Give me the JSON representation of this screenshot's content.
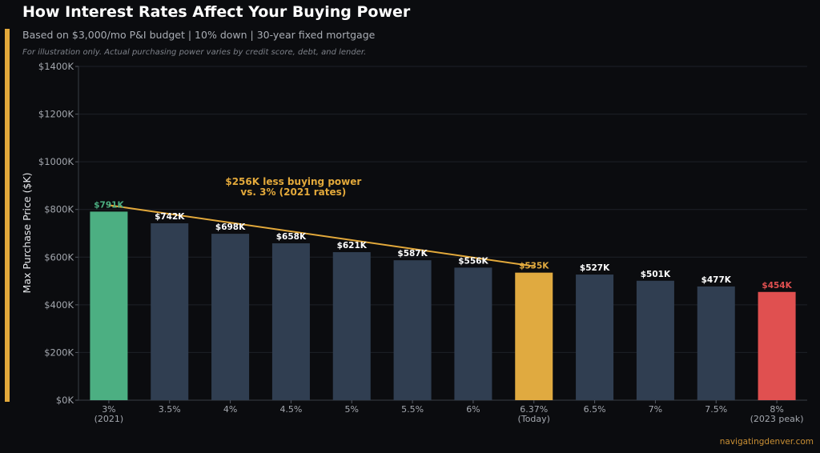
{
  "header": {
    "title": "How Interest Rates Affect Your Buying Power",
    "subtitle": "Based on $3,000/mo P&I budget | 10% down | 30-year fixed mortgage",
    "note": "For illustration only. Actual purchasing power varies by credit score, debt, and lender."
  },
  "footer": {
    "source": "navigatingdenver.com"
  },
  "colors": {
    "background": "#0b0c0f",
    "accent": "#e3a93b",
    "green": "#4caf82",
    "slate": "#303e51",
    "gold": "#e0aa40",
    "red": "#e05050"
  },
  "chart_data": {
    "type": "bar",
    "ylabel": "Max Purchase Price ($K)",
    "ylim": [
      0,
      1400
    ],
    "yticks": [
      0,
      200,
      400,
      600,
      800,
      1000,
      1200,
      1400
    ],
    "ytick_labels": [
      "$0K",
      "$200K",
      "$400K",
      "$600K",
      "$800K",
      "$1000K",
      "$1200K",
      "$1400K"
    ],
    "grid": true,
    "categories": [
      "3%\n(2021)",
      "3.5%",
      "4%",
      "4.5%",
      "5%",
      "5.5%",
      "6%",
      "6.37%\n(Today)",
      "6.5%",
      "7%",
      "7.5%",
      "8%\n(2023 peak)"
    ],
    "values": [
      791,
      742,
      698,
      658,
      621,
      587,
      556,
      535,
      527,
      501,
      477,
      454
    ],
    "data_labels": [
      "$791K",
      "$742K",
      "$698K",
      "$658K",
      "$621K",
      "$587K",
      "$556K",
      "$535K",
      "$527K",
      "$501K",
      "$477K",
      "$454K"
    ],
    "bar_colors": [
      "#4caf82",
      "#303e51",
      "#303e51",
      "#303e51",
      "#303e51",
      "#303e51",
      "#303e51",
      "#e0aa40",
      "#303e51",
      "#303e51",
      "#303e51",
      "#e05050"
    ],
    "label_colors": [
      "#4caf82",
      "#ffffff",
      "#ffffff",
      "#ffffff",
      "#ffffff",
      "#ffffff",
      "#ffffff",
      "#e0aa40",
      "#ffffff",
      "#ffffff",
      "#ffffff",
      "#e05050"
    ],
    "annotation": {
      "text": [
        "$256K less buying power",
        "vs. 3% (2021 rates)"
      ],
      "from_index": 0,
      "to_index": 7,
      "color": "#e3a93b"
    }
  }
}
